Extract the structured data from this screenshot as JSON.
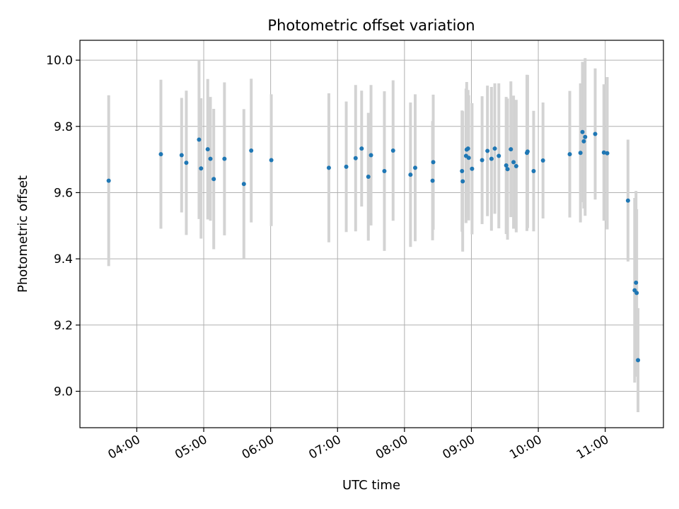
{
  "chart_data": {
    "type": "scatter",
    "title": "Photometric offset variation",
    "xlabel": "UTC time",
    "ylabel": "Photometric offset",
    "x_tick_labels": [
      "04:00",
      "05:00",
      "06:00",
      "07:00",
      "08:00",
      "09:00",
      "10:00",
      "11:00"
    ],
    "y_tick_labels": [
      "9.0",
      "9.2",
      "9.4",
      "9.6",
      "9.8",
      "10.0"
    ],
    "x_range_hours": [
      3.15,
      11.87
    ],
    "ylim": [
      8.89,
      10.06
    ],
    "grid": true,
    "legend": "none",
    "marker_color": "#1f77b4",
    "errorbar_color": "#d3d3d3",
    "series": [
      {
        "x_hours": [
          3.58,
          4.36,
          4.67,
          4.74,
          4.93,
          4.96,
          5.06,
          5.1,
          5.15,
          5.31,
          5.6,
          5.71,
          6.01,
          6.87,
          7.13,
          7.27,
          7.36,
          7.46,
          7.5,
          7.7,
          7.83,
          8.09,
          8.16,
          8.42,
          8.43,
          8.86,
          8.87,
          8.92,
          8.93,
          8.95,
          8.96,
          9.01,
          9.16,
          9.24,
          9.3,
          9.35,
          9.41,
          9.52,
          9.54,
          9.59,
          9.63,
          9.67,
          9.83,
          9.84,
          9.93,
          10.07,
          10.47,
          10.63,
          10.66,
          10.68,
          10.7,
          10.85,
          10.98,
          11.03,
          11.34,
          11.44,
          11.46,
          11.47,
          11.49
        ],
        "y_values": [
          9.636,
          9.716,
          9.713,
          9.69,
          9.76,
          9.673,
          9.731,
          9.702,
          9.641,
          9.702,
          9.626,
          9.727,
          9.698,
          9.675,
          9.678,
          9.704,
          9.733,
          9.648,
          9.713,
          9.665,
          9.727,
          9.654,
          9.675,
          9.636,
          9.692,
          9.665,
          9.634,
          9.711,
          9.73,
          9.733,
          9.705,
          9.672,
          9.698,
          9.726,
          9.702,
          9.733,
          9.711,
          9.682,
          9.671,
          9.731,
          9.692,
          9.68,
          9.72,
          9.724,
          9.665,
          9.697,
          9.716,
          9.72,
          9.783,
          9.755,
          9.768,
          9.777,
          9.721,
          9.719,
          9.576,
          9.305,
          9.328,
          9.297,
          9.094
        ],
        "y_errors": [
          0.258,
          0.225,
          0.173,
          0.218,
          0.24,
          0.212,
          0.212,
          0.187,
          0.212,
          0.231,
          0.226,
          0.217,
          0.199,
          0.225,
          0.197,
          0.221,
          0.175,
          0.193,
          0.212,
          0.241,
          0.212,
          0.218,
          0.222,
          0.18,
          0.204,
          0.183,
          0.212,
          0.203,
          0.204,
          0.177,
          0.189,
          0.198,
          0.193,
          0.197,
          0.217,
          0.197,
          0.219,
          0.207,
          0.213,
          0.205,
          0.201,
          0.2,
          0.236,
          0.231,
          0.182,
          0.175,
          0.191,
          0.21,
          0.212,
          0.203,
          0.238,
          0.198,
          0.206,
          0.23,
          0.184,
          0.279,
          0.277,
          0.253,
          0.157
        ]
      }
    ]
  }
}
